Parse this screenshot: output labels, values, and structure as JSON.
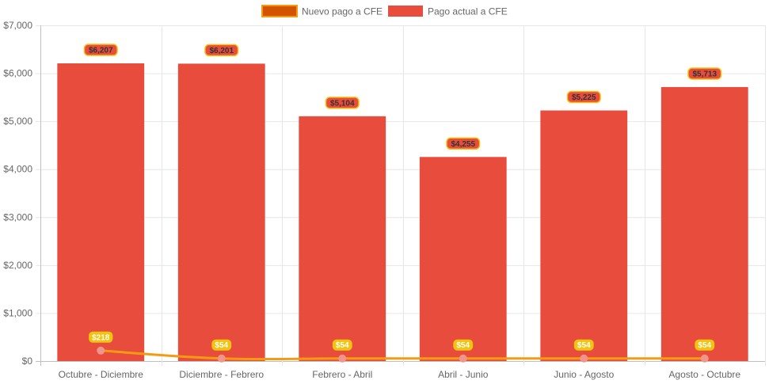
{
  "chart_data": {
    "type": "bar",
    "categories": [
      "Octubre - Diciembre",
      "Diciembre - Febrero",
      "Febrero - Abril",
      "Abril - Junio",
      "Junio - Agosto",
      "Agosto - Octubre"
    ],
    "series": [
      {
        "name": "Nuevo pago a CFE",
        "type": "line",
        "values": [
          218,
          54,
          54,
          54,
          54,
          54
        ],
        "labels": [
          "$218",
          "$54",
          "$54",
          "$54",
          "$54",
          "$54"
        ],
        "color": "#f39c12",
        "legend_fill": "#d35400"
      },
      {
        "name": "Pago actual a CFE",
        "type": "bar",
        "values": [
          6207,
          6201,
          5104,
          4255,
          5225,
          5713
        ],
        "labels": [
          "$6,207",
          "$6,201",
          "$5,104",
          "$4,255",
          "$5,225",
          "$5,713"
        ],
        "color": "#e74c3c"
      }
    ],
    "y_ticks": [
      "$0",
      "$1,000",
      "$2,000",
      "$3,000",
      "$4,000",
      "$5,000",
      "$6,000",
      "$7,000"
    ],
    "ylim": [
      0,
      7000
    ],
    "ystep": 1000,
    "legend_position": "top",
    "grid": true,
    "label_colors": {
      "bar_label_bg": "#e74c3c",
      "bar_label_border": "#f1c40f",
      "bar_label_text": "#333333",
      "line_label_bg": "#f1c40f",
      "line_label_text": "#ffffff",
      "point_color": "#f1948a"
    }
  }
}
